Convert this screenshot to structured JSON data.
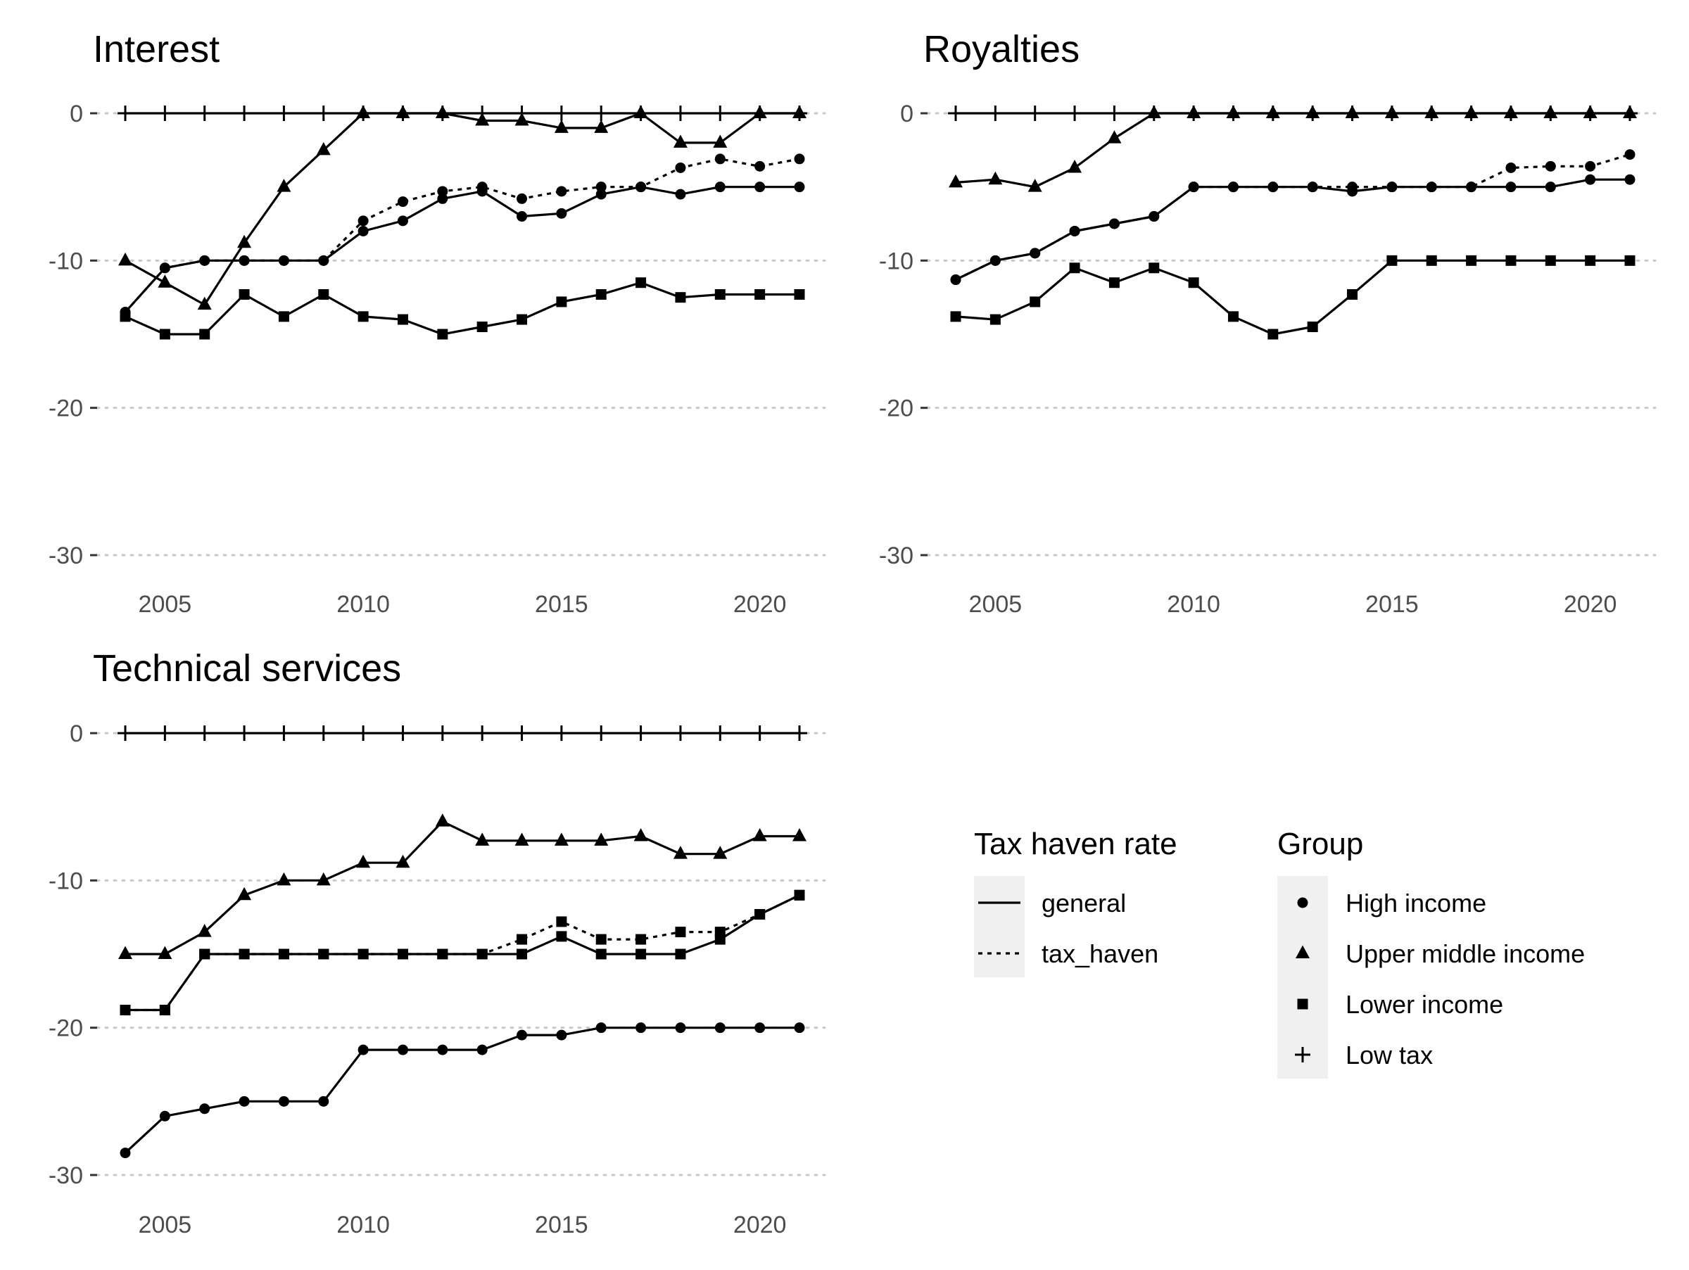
{
  "chart_data": [
    {
      "type": "line",
      "title": "Interest",
      "ylim": [
        -30,
        0
      ],
      "yticks": [
        0,
        -10,
        -20,
        -30
      ],
      "xticks": [
        2005,
        2010,
        2015,
        2020
      ],
      "x": [
        2004,
        2005,
        2006,
        2007,
        2008,
        2009,
        2010,
        2011,
        2012,
        2013,
        2014,
        2015,
        2016,
        2017,
        2018,
        2019,
        2020,
        2021
      ],
      "series": [
        {
          "group": "Low tax",
          "rate": "general",
          "values": [
            0,
            0,
            0,
            0,
            0,
            0,
            0,
            0,
            0,
            0,
            0,
            0,
            0,
            0,
            0,
            0,
            0,
            0
          ]
        },
        {
          "group": "Upper middle income",
          "rate": "general",
          "values": [
            -10,
            -11.5,
            -13,
            -8.8,
            -5,
            -2.5,
            0,
            0,
            0,
            -0.5,
            -0.5,
            -1,
            -1,
            0,
            -2,
            -2,
            0,
            0
          ]
        },
        {
          "group": "High income",
          "rate": "general",
          "values": [
            -13.5,
            -10.5,
            -10,
            -10,
            -10,
            -10,
            -8,
            -7.3,
            -5.8,
            -5.3,
            -7,
            -6.8,
            -5.5,
            -5,
            -5.5,
            -5,
            -5,
            -5
          ]
        },
        {
          "group": "High income",
          "rate": "tax_haven",
          "values": [
            -13.5,
            -10.5,
            -10,
            -10,
            -10,
            -10,
            -7.3,
            -6,
            -5.3,
            -5,
            -5.8,
            -5.3,
            -5,
            -5,
            -3.7,
            -3.1,
            -3.6,
            -3.1
          ]
        },
        {
          "group": "Lower income",
          "rate": "general",
          "values": [
            -13.8,
            -15,
            -15,
            -12.3,
            -13.8,
            -12.3,
            -13.8,
            -14,
            -15,
            -14.5,
            -14,
            -12.8,
            -12.3,
            -11.5,
            -12.5,
            -12.3,
            -12.3,
            -12.3
          ]
        }
      ]
    },
    {
      "type": "line",
      "title": "Royalties",
      "ylim": [
        -30,
        0
      ],
      "yticks": [
        0,
        -10,
        -20,
        -30
      ],
      "xticks": [
        2005,
        2010,
        2015,
        2020
      ],
      "x": [
        2004,
        2005,
        2006,
        2007,
        2008,
        2009,
        2010,
        2011,
        2012,
        2013,
        2014,
        2015,
        2016,
        2017,
        2018,
        2019,
        2020,
        2021
      ],
      "series": [
        {
          "group": "Low tax",
          "rate": "general",
          "values": [
            0,
            0,
            0,
            0,
            0,
            0,
            0,
            0,
            0,
            0,
            0,
            0,
            0,
            0,
            0,
            0,
            0,
            0
          ]
        },
        {
          "group": "Upper middle income",
          "rate": "general",
          "values": [
            -4.7,
            -4.5,
            -5,
            -3.7,
            -1.7,
            0,
            0,
            0,
            0,
            0,
            0,
            0,
            0,
            0,
            0,
            0,
            0,
            0
          ]
        },
        {
          "group": "High income",
          "rate": "general",
          "values": [
            -11.3,
            -10,
            -9.5,
            -8,
            -7.5,
            -7,
            -5,
            -5,
            -5,
            -5,
            -5.3,
            -5,
            -5,
            -5,
            -5,
            -5,
            -4.5,
            -4.5
          ]
        },
        {
          "group": "High income",
          "rate": "tax_haven",
          "values": [
            -11.3,
            -10,
            -9.5,
            -8,
            -7.5,
            -7,
            -5,
            -5,
            -5,
            -5,
            -5,
            -5,
            -5,
            -5,
            -3.7,
            -3.6,
            -3.6,
            -2.8
          ]
        },
        {
          "group": "Lower income",
          "rate": "general",
          "values": [
            -13.8,
            -14,
            -12.8,
            -10.5,
            -11.5,
            -10.5,
            -11.5,
            -13.8,
            -15,
            -14.5,
            -12.3,
            -10,
            -10,
            -10,
            -10,
            -10,
            -10,
            -10
          ]
        }
      ]
    },
    {
      "type": "line",
      "title": "Technical services",
      "ylim": [
        -30,
        0
      ],
      "yticks": [
        0,
        -10,
        -20,
        -30
      ],
      "xticks": [
        2005,
        2010,
        2015,
        2020
      ],
      "x": [
        2004,
        2005,
        2006,
        2007,
        2008,
        2009,
        2010,
        2011,
        2012,
        2013,
        2014,
        2015,
        2016,
        2017,
        2018,
        2019,
        2020,
        2021
      ],
      "series": [
        {
          "group": "Low tax",
          "rate": "general",
          "values": [
            0,
            0,
            0,
            0,
            0,
            0,
            0,
            0,
            0,
            0,
            0,
            0,
            0,
            0,
            0,
            0,
            0,
            0
          ]
        },
        {
          "group": "Upper middle income",
          "rate": "general",
          "values": [
            -15,
            -15,
            -13.5,
            -11,
            -10,
            -10,
            -8.8,
            -8.8,
            -6,
            -7.3,
            -7.3,
            -7.3,
            -7.3,
            -7,
            -8.2,
            -8.2,
            -7,
            -7
          ]
        },
        {
          "group": "Lower income",
          "rate": "general",
          "values": [
            -18.8,
            -18.8,
            -15,
            -15,
            -15,
            -15,
            -15,
            -15,
            -15,
            -15,
            -15,
            -13.8,
            -15,
            -15,
            -15,
            -14,
            -12.3,
            -11
          ]
        },
        {
          "group": "Lower income",
          "rate": "tax_haven",
          "values": [
            -18.8,
            -18.8,
            -15,
            -15,
            -15,
            -15,
            -15,
            -15,
            -15,
            -15,
            -14,
            -12.8,
            -14,
            -14,
            -13.5,
            -13.5,
            -12.3,
            -11
          ]
        },
        {
          "group": "High income",
          "rate": "general",
          "values": [
            -28.5,
            -26,
            -25.5,
            -25,
            -25,
            -25,
            -21.5,
            -21.5,
            -21.5,
            -21.5,
            -20.5,
            -20.5,
            -20,
            -20,
            -20,
            -20,
            -20,
            -20
          ]
        }
      ]
    }
  ],
  "legend": {
    "rate_title": "Tax haven rate",
    "rate_items": [
      {
        "label": "general",
        "line": "solid"
      },
      {
        "label": "tax_haven",
        "line": "dotted"
      }
    ],
    "group_title": "Group",
    "group_items": [
      {
        "label": "High income",
        "shape": "circle"
      },
      {
        "label": "Upper middle income",
        "shape": "triangle"
      },
      {
        "label": "Lower income",
        "shape": "square"
      },
      {
        "label": "Low tax",
        "shape": "plus"
      }
    ]
  }
}
